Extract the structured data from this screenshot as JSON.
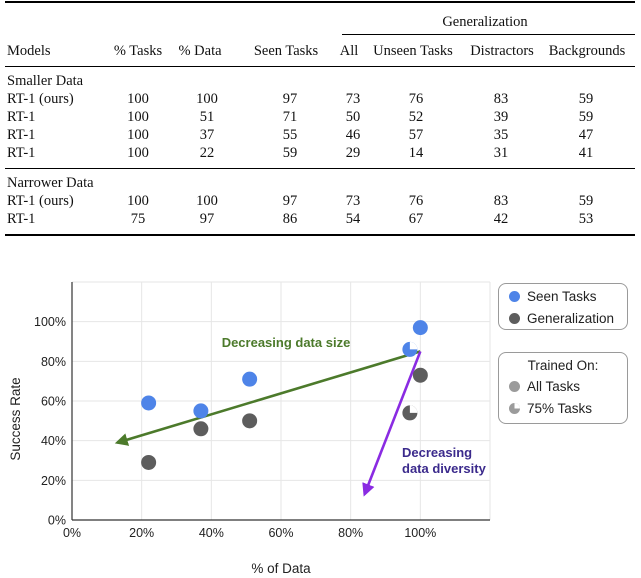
{
  "table": {
    "group_header": "Generalization",
    "headers": [
      "Models",
      "% Tasks",
      "% Data",
      "Seen Tasks",
      "All",
      "Unseen Tasks",
      "Distractors",
      "Backgrounds"
    ],
    "sections": [
      {
        "title": "Smaller Data",
        "rows": [
          [
            "RT-1 (ours)",
            "100",
            "100",
            "97",
            "73",
            "76",
            "83",
            "59"
          ],
          [
            "RT-1",
            "100",
            "51",
            "71",
            "50",
            "52",
            "39",
            "59"
          ],
          [
            "RT-1",
            "100",
            "37",
            "55",
            "46",
            "57",
            "35",
            "47"
          ],
          [
            "RT-1",
            "100",
            "22",
            "59",
            "29",
            "14",
            "31",
            "41"
          ]
        ]
      },
      {
        "title": "Narrower Data",
        "rows": [
          [
            "RT-1 (ours)",
            "100",
            "100",
            "97",
            "73",
            "76",
            "83",
            "59"
          ],
          [
            "RT-1",
            "75",
            "97",
            "86",
            "54",
            "67",
            "42",
            "53"
          ]
        ]
      }
    ]
  },
  "chart_data": {
    "type": "scatter",
    "xlabel": "% of Data",
    "ylabel": "Success Rate",
    "xlim": [
      0,
      120
    ],
    "ylim": [
      0,
      120
    ],
    "xticks": [
      0,
      20,
      40,
      60,
      80,
      100
    ],
    "xtick_labels": [
      "0%",
      "20%",
      "40%",
      "60%",
      "80%",
      "100%"
    ],
    "yticks": [
      0,
      20,
      40,
      60,
      80,
      100
    ],
    "ytick_labels": [
      "0%",
      "20%",
      "40%",
      "60%",
      "80%",
      "100%"
    ],
    "grid": true,
    "series": [
      {
        "name": "Seen Tasks",
        "color": "#4e84e8",
        "points": [
          {
            "x": 22,
            "y": 59,
            "trained_on": "All Tasks"
          },
          {
            "x": 37,
            "y": 55,
            "trained_on": "All Tasks"
          },
          {
            "x": 51,
            "y": 71,
            "trained_on": "All Tasks"
          },
          {
            "x": 100,
            "y": 97,
            "trained_on": "All Tasks"
          },
          {
            "x": 97,
            "y": 86,
            "trained_on": "75% Tasks"
          }
        ]
      },
      {
        "name": "Generalization",
        "color": "#5d5d5d",
        "points": [
          {
            "x": 22,
            "y": 29,
            "trained_on": "All Tasks"
          },
          {
            "x": 37,
            "y": 46,
            "trained_on": "All Tasks"
          },
          {
            "x": 51,
            "y": 50,
            "trained_on": "All Tasks"
          },
          {
            "x": 100,
            "y": 73,
            "trained_on": "All Tasks"
          },
          {
            "x": 97,
            "y": 54,
            "trained_on": "75% Tasks"
          }
        ]
      }
    ],
    "annotations": [
      {
        "text": "Decreasing data size",
        "color": "#4c7a2b",
        "arrow_from": [
          100,
          85
        ],
        "arrow_to": [
          13,
          39
        ]
      },
      {
        "text": "Decreasing data diversity",
        "lines": [
          "Decreasing",
          "data diversity"
        ],
        "color": "#3b2a8c",
        "arrow_color": "#8a2be2",
        "arrow_from": [
          100,
          85
        ],
        "arrow_to": [
          84,
          13
        ]
      }
    ],
    "legend": {
      "placement": "right",
      "series_entries": [
        "Seen Tasks",
        "Generalization"
      ],
      "trained_on_title": "Trained On:",
      "trained_on_entries": [
        "All Tasks",
        "75% Tasks"
      ],
      "marker_color": "#9b9b9b"
    }
  }
}
